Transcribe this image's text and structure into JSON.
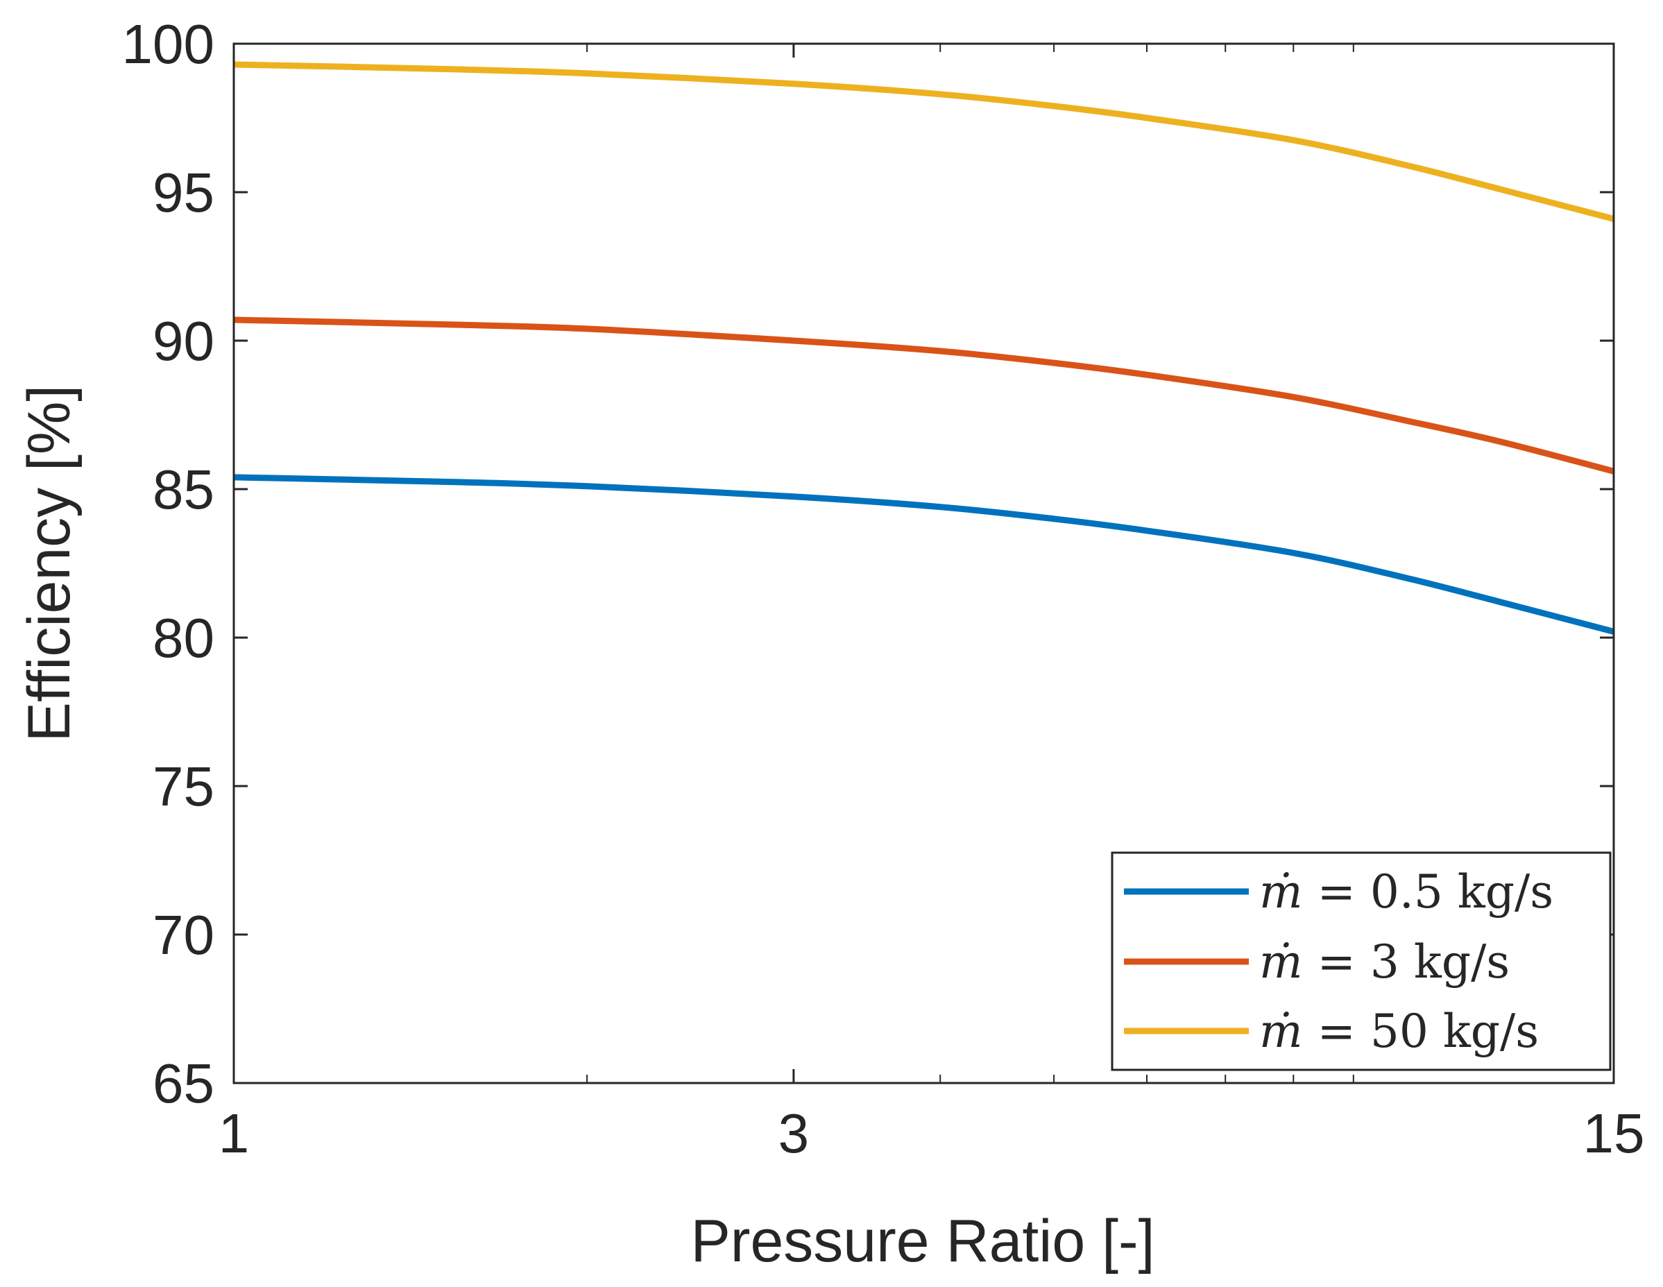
{
  "chart_data": {
    "type": "line",
    "title": "",
    "xlabel": "Pressure Ratio [-]",
    "ylabel": "Efficiency [%]",
    "xscale": "log",
    "xlim": [
      1,
      15
    ],
    "ylim": [
      65,
      100
    ],
    "xticks": [
      1,
      3,
      15
    ],
    "xtick_labels": [
      "1",
      "3",
      "15"
    ],
    "yticks": [
      65,
      70,
      75,
      80,
      85,
      90,
      95,
      100
    ],
    "ytick_labels": [
      "65",
      "70",
      "75",
      "80",
      "85",
      "90",
      "95",
      "100"
    ],
    "grid": false,
    "legend_position": "bottom-right",
    "x": [
      1,
      1.5,
      2,
      3,
      4,
      5,
      6,
      8,
      10,
      12,
      15
    ],
    "series": [
      {
        "name": "ṁ = 0.5 kg/s",
        "legend_symbol": "ṁ",
        "legend_rest": " = 0.5 kg/s",
        "color": "#0072BD",
        "values": [
          85.4,
          85.25,
          85.1,
          84.75,
          84.4,
          84.0,
          83.6,
          82.85,
          82.0,
          81.2,
          80.2
        ]
      },
      {
        "name": "ṁ = 3 kg/s",
        "legend_symbol": "ṁ",
        "legend_rest": " = 3 kg/s",
        "color": "#D95319",
        "values": [
          90.7,
          90.55,
          90.4,
          90.0,
          89.65,
          89.25,
          88.85,
          88.1,
          87.3,
          86.6,
          85.6
        ]
      },
      {
        "name": "ṁ = 50 kg/s",
        "legend_symbol": "ṁ",
        "legend_rest": " = 50 kg/s",
        "color": "#EDB120",
        "values": [
          99.3,
          99.15,
          99.0,
          98.65,
          98.3,
          97.9,
          97.5,
          96.75,
          95.9,
          95.1,
          94.1
        ]
      }
    ]
  }
}
